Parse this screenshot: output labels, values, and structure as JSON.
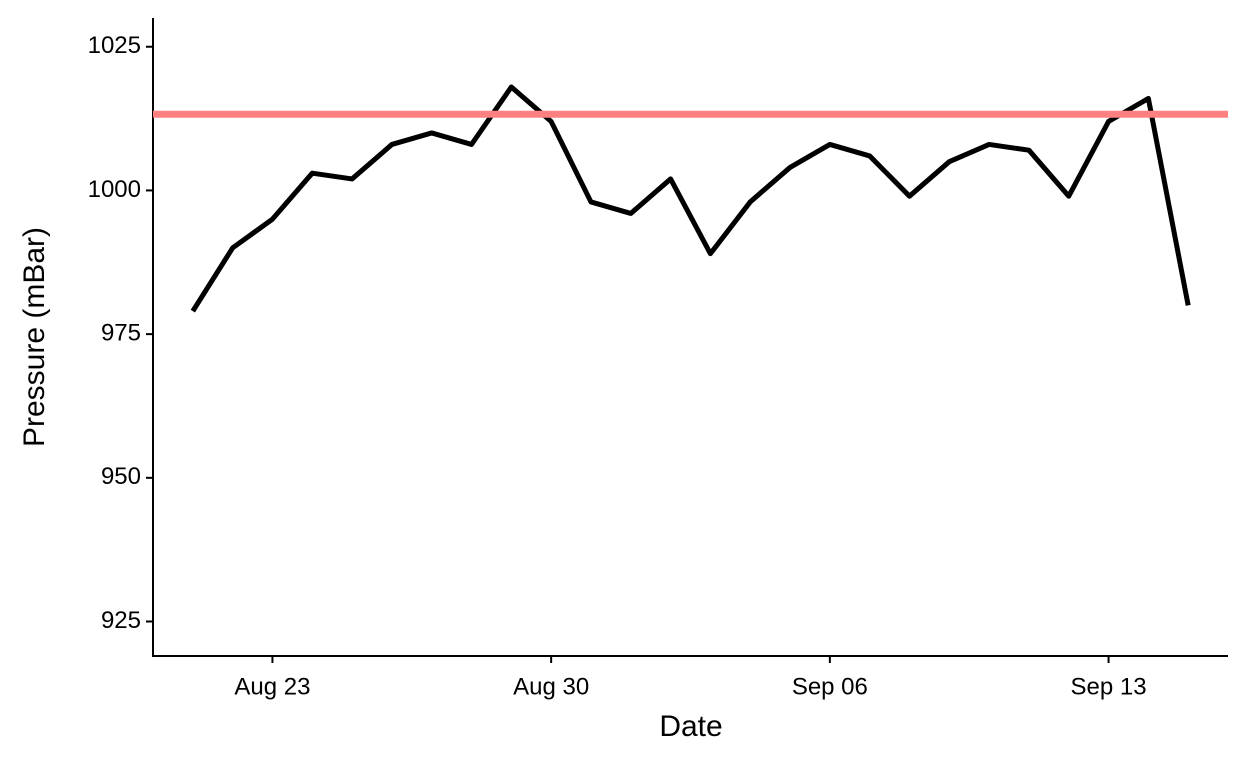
{
  "chart_data": {
    "type": "line",
    "x_label": "Date",
    "y_label": "Pressure (mBar)",
    "x": [
      "Aug 21",
      "Aug 22",
      "Aug 23",
      "Aug 24",
      "Aug 25",
      "Aug 26",
      "Aug 27",
      "Aug 28",
      "Aug 29",
      "Aug 30",
      "Aug 31",
      "Sep 01",
      "Sep 02",
      "Sep 03",
      "Sep 04",
      "Sep 05",
      "Sep 06",
      "Sep 07",
      "Sep 08",
      "Sep 09",
      "Sep 10",
      "Sep 11",
      "Sep 12",
      "Sep 13",
      "Sep 14",
      "Sep 15"
    ],
    "series": [
      {
        "color": "#000000",
        "values": [
          979,
          990,
          995,
          1003,
          1002,
          1008,
          1010,
          1008,
          1018,
          1012,
          998,
          996,
          1002,
          989,
          998,
          1004,
          1008,
          1006,
          999,
          1005,
          1008,
          1007,
          999,
          1012,
          1016,
          980
        ]
      }
    ],
    "hline": {
      "value": 1013.25,
      "color": "#ff8080"
    },
    "xlim": [
      "Aug 20",
      "Sep 16"
    ],
    "xticks": [
      "Aug 23",
      "Aug 30",
      "Sep 06",
      "Sep 13"
    ],
    "ylim": [
      919,
      1030
    ],
    "yticks": [
      925,
      950,
      975,
      1000,
      1025
    ]
  }
}
